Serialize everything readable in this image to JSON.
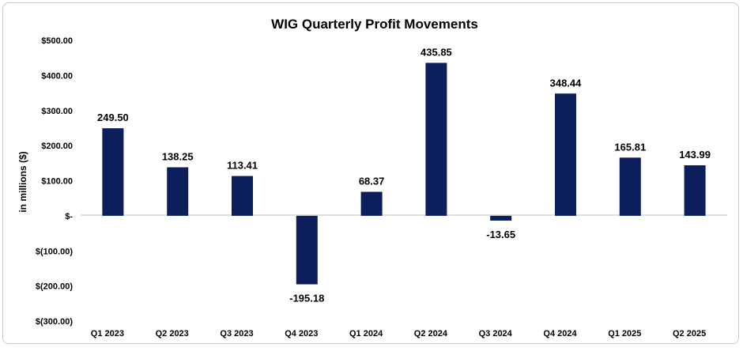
{
  "chart_data": {
    "type": "bar",
    "title": "WIG Quarterly Profit Movements",
    "ylabel": "in millions ($)",
    "xlabel": "",
    "categories": [
      "Q1 2023",
      "Q2 2023",
      "Q3 2023",
      "Q4 2023",
      "Q1 2024",
      "Q2 2024",
      "Q3 2024",
      "Q4 2024",
      "Q1 2025",
      "Q2 2025"
    ],
    "values": [
      249.5,
      138.25,
      113.41,
      -195.18,
      68.37,
      435.85,
      -13.65,
      348.44,
      165.81,
      143.99
    ],
    "data_labels": [
      "249.50",
      "138.25",
      "113.41",
      "-195.18",
      "68.37",
      "435.85",
      "-13.65",
      "348.44",
      "165.81",
      "143.99"
    ],
    "ylim": [
      -300,
      500
    ],
    "yticks": [
      500,
      400,
      300,
      200,
      100,
      0,
      -100,
      -200,
      -300
    ],
    "ytick_labels": [
      "$500.00",
      "$400.00",
      "$300.00",
      "$200.00",
      "$100.00",
      "$-",
      "$(100.00)",
      "$(200.00)",
      "$(300.00)"
    ],
    "grid": false,
    "legend": "none",
    "bar_color": "#0c1f5c"
  }
}
